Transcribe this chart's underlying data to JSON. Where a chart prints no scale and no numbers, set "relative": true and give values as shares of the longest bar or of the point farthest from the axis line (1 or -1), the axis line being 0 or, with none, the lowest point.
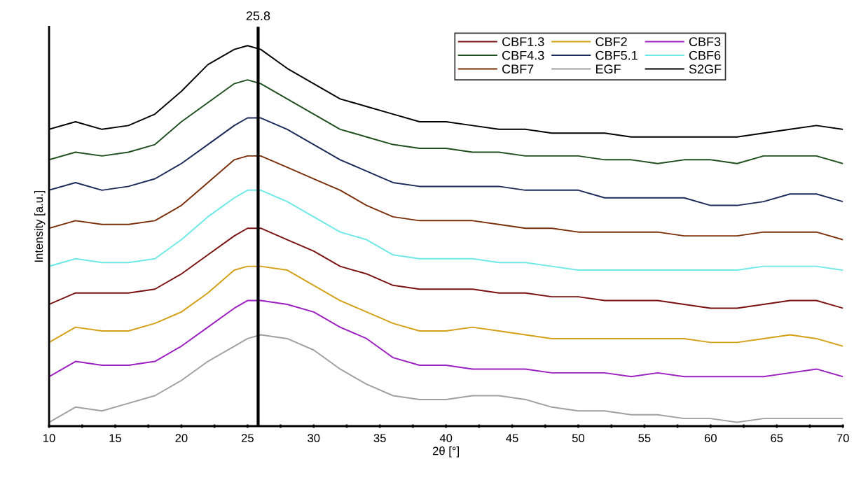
{
  "chart_data": {
    "type": "line",
    "relative": true,
    "xlabel": "2θ [°]",
    "ylabel": "Intensity [a.u.]",
    "x": [
      10,
      12,
      14,
      16,
      18,
      20,
      22,
      24,
      25,
      26,
      28,
      30,
      32,
      34,
      36,
      38,
      40,
      42,
      44,
      46,
      48,
      50,
      52,
      54,
      56,
      58,
      60,
      62,
      64,
      66,
      68,
      70
    ],
    "xlim": [
      10,
      70
    ],
    "xticks": [
      10,
      {
        "value": 12.5,
        "label": null
      },
      15,
      {
        "value": 17.5,
        "label": null
      },
      20,
      {
        "value": 22.5,
        "label": null
      },
      25,
      {
        "value": 27.5,
        "label": null
      },
      30,
      {
        "value": 32.5,
        "label": null
      },
      35,
      {
        "value": 37.5,
        "label": null
      },
      40,
      {
        "value": 42.5,
        "label": null
      },
      45,
      {
        "value": 47.5,
        "label": null
      },
      50,
      {
        "value": 52.5,
        "label": null
      },
      55,
      {
        "value": 57.5,
        "label": null
      },
      60,
      {
        "value": 62.5,
        "label": null
      },
      65,
      {
        "value": 67.5,
        "label": null
      },
      70
    ],
    "tick_labels": "x",
    "grid": false,
    "legend": "top right",
    "line_style": "solid",
    "marker": "none",
    "ref_lines": [
      {
        "axis": "x",
        "value": 25.8,
        "label": "25.8",
        "color": "#000000"
      }
    ],
    "series": [
      {
        "name": "CBF1.3",
        "color": "#7b1010",
        "values": [
          0.32,
          0.35,
          0.35,
          0.35,
          0.36,
          0.4,
          0.45,
          0.5,
          0.52,
          0.52,
          0.49,
          0.46,
          0.42,
          0.4,
          0.37,
          0.36,
          0.36,
          0.36,
          0.35,
          0.35,
          0.34,
          0.34,
          0.33,
          0.33,
          0.33,
          0.32,
          0.31,
          0.31,
          0.32,
          0.33,
          0.33,
          0.31
        ]
      },
      {
        "name": "CBF2",
        "color": "#d4a017",
        "values": [
          0.22,
          0.26,
          0.25,
          0.25,
          0.27,
          0.3,
          0.35,
          0.41,
          0.42,
          0.42,
          0.41,
          0.37,
          0.33,
          0.3,
          0.27,
          0.25,
          0.25,
          0.26,
          0.25,
          0.24,
          0.23,
          0.23,
          0.23,
          0.23,
          0.23,
          0.23,
          0.22,
          0.22,
          0.23,
          0.24,
          0.23,
          0.21
        ]
      },
      {
        "name": "CBF3",
        "color": "#9b1fc1",
        "values": [
          0.13,
          0.17,
          0.16,
          0.16,
          0.17,
          0.21,
          0.26,
          0.31,
          0.33,
          0.33,
          0.32,
          0.3,
          0.26,
          0.23,
          0.18,
          0.16,
          0.16,
          0.15,
          0.15,
          0.15,
          0.14,
          0.14,
          0.14,
          0.13,
          0.14,
          0.13,
          0.13,
          0.13,
          0.13,
          0.14,
          0.15,
          0.13
        ]
      },
      {
        "name": "CBF4.3",
        "color": "#1f4f1f",
        "values": [
          0.7,
          0.72,
          0.71,
          0.72,
          0.74,
          0.8,
          0.85,
          0.9,
          0.91,
          0.9,
          0.86,
          0.82,
          0.78,
          0.76,
          0.74,
          0.73,
          0.73,
          0.72,
          0.72,
          0.71,
          0.71,
          0.71,
          0.7,
          0.7,
          0.69,
          0.7,
          0.7,
          0.69,
          0.71,
          0.71,
          0.71,
          0.69
        ]
      },
      {
        "name": "CBF5.1",
        "color": "#1c2a5a",
        "values": [
          0.62,
          0.64,
          0.62,
          0.63,
          0.65,
          0.69,
          0.74,
          0.79,
          0.81,
          0.81,
          0.78,
          0.74,
          0.7,
          0.67,
          0.64,
          0.63,
          0.63,
          0.63,
          0.63,
          0.62,
          0.62,
          0.62,
          0.6,
          0.6,
          0.6,
          0.6,
          0.58,
          0.58,
          0.59,
          0.61,
          0.61,
          0.59
        ]
      },
      {
        "name": "CBF6",
        "color": "#6fe8e8",
        "values": [
          0.42,
          0.44,
          0.43,
          0.43,
          0.44,
          0.49,
          0.55,
          0.6,
          0.62,
          0.62,
          0.59,
          0.55,
          0.51,
          0.49,
          0.45,
          0.44,
          0.44,
          0.44,
          0.43,
          0.43,
          0.42,
          0.41,
          0.41,
          0.41,
          0.41,
          0.41,
          0.41,
          0.41,
          0.42,
          0.42,
          0.42,
          0.41
        ]
      },
      {
        "name": "CBF7",
        "color": "#7a2f0a",
        "values": [
          0.52,
          0.54,
          0.53,
          0.53,
          0.54,
          0.58,
          0.64,
          0.7,
          0.71,
          0.71,
          0.68,
          0.65,
          0.62,
          0.58,
          0.55,
          0.54,
          0.54,
          0.54,
          0.53,
          0.52,
          0.52,
          0.51,
          0.51,
          0.51,
          0.51,
          0.5,
          0.5,
          0.5,
          0.51,
          0.51,
          0.51,
          0.49
        ]
      },
      {
        "name": "EGF",
        "color": "#a0a0a0",
        "values": [
          0.01,
          0.05,
          0.04,
          0.06,
          0.08,
          0.12,
          0.17,
          0.21,
          0.23,
          0.24,
          0.23,
          0.2,
          0.15,
          0.11,
          0.08,
          0.07,
          0.07,
          0.08,
          0.08,
          0.07,
          0.05,
          0.04,
          0.04,
          0.03,
          0.03,
          0.02,
          0.02,
          0.01,
          0.02,
          0.02,
          0.02,
          0.02
        ]
      },
      {
        "name": "S2GF",
        "color": "#000000",
        "values": [
          0.78,
          0.8,
          0.78,
          0.79,
          0.82,
          0.88,
          0.95,
          0.99,
          1,
          0.99,
          0.94,
          0.9,
          0.86,
          0.84,
          0.82,
          0.8,
          0.8,
          0.79,
          0.78,
          0.78,
          0.77,
          0.77,
          0.77,
          0.76,
          0.76,
          0.76,
          0.76,
          0.76,
          0.77,
          0.78,
          0.79,
          0.78
        ]
      }
    ]
  }
}
